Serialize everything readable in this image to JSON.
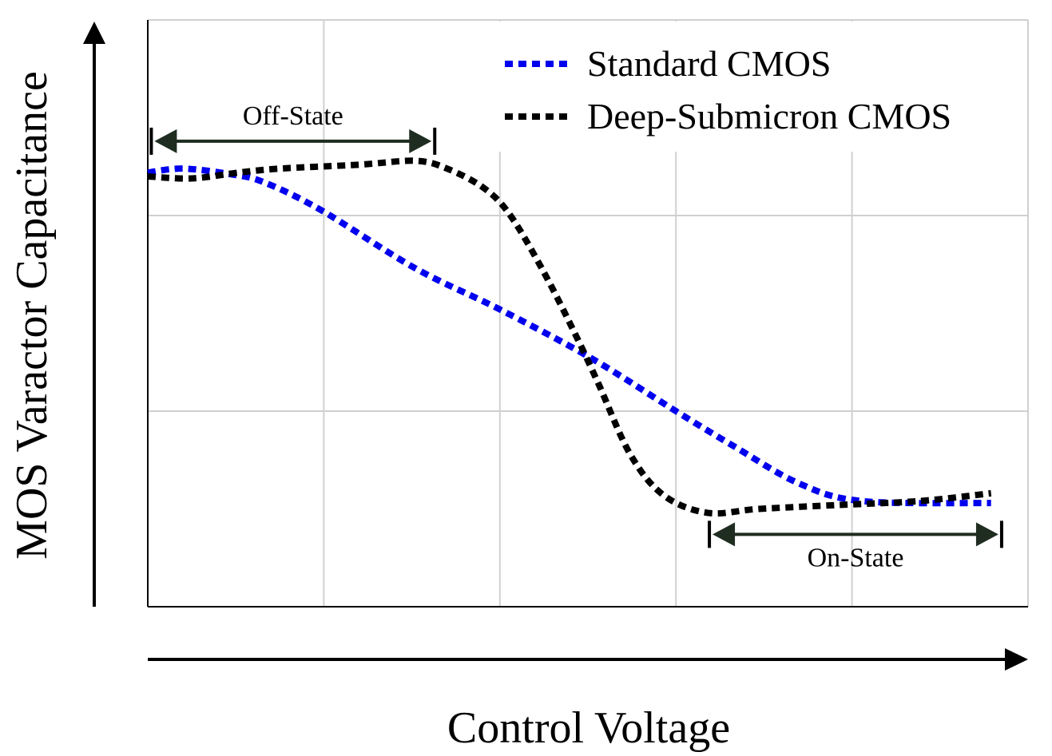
{
  "chart_data": {
    "type": "line",
    "title": "",
    "xlabel": "Control Voltage",
    "ylabel": "MOS Varactor Capacitance",
    "xlim": [
      0,
      5
    ],
    "ylim": [
      0,
      3
    ],
    "grid": true,
    "legend_position": "top-right",
    "series": [
      {
        "name": "Standard CMOS",
        "color": "#0000ee",
        "style": "dotted",
        "x": [
          0,
          0.2,
          0.48,
          0.66,
          0.98,
          1.52,
          2.0,
          2.52,
          3.0,
          3.33,
          3.7,
          4.06,
          4.79
        ],
        "y": [
          2.22,
          2.24,
          2.21,
          2.17,
          2.03,
          1.73,
          1.52,
          1.27,
          1.0,
          0.82,
          0.63,
          0.54,
          0.53
        ]
      },
      {
        "name": "Deep-Submicron CMOS",
        "color": "#000000",
        "style": "dotted",
        "x": [
          0,
          0.25,
          0.52,
          0.75,
          1.2,
          1.52,
          1.7,
          1.91,
          2.06,
          2.25,
          2.43,
          2.56,
          2.74,
          2.93,
          3.18,
          3.47,
          3.92,
          4.38,
          4.79
        ],
        "y": [
          2.2,
          2.19,
          2.22,
          2.24,
          2.26,
          2.28,
          2.24,
          2.14,
          2.0,
          1.71,
          1.39,
          1.14,
          0.78,
          0.57,
          0.48,
          0.5,
          0.52,
          0.54,
          0.58
        ]
      }
    ],
    "annotations": [
      {
        "label": "Off-State",
        "x_range": [
          0.02,
          1.63
        ],
        "y": 2.38,
        "color": "#1f2d20"
      },
      {
        "label": "On-State",
        "x_range": [
          3.19,
          4.85
        ],
        "y": 0.37,
        "color": "#1f2d20"
      }
    ]
  }
}
